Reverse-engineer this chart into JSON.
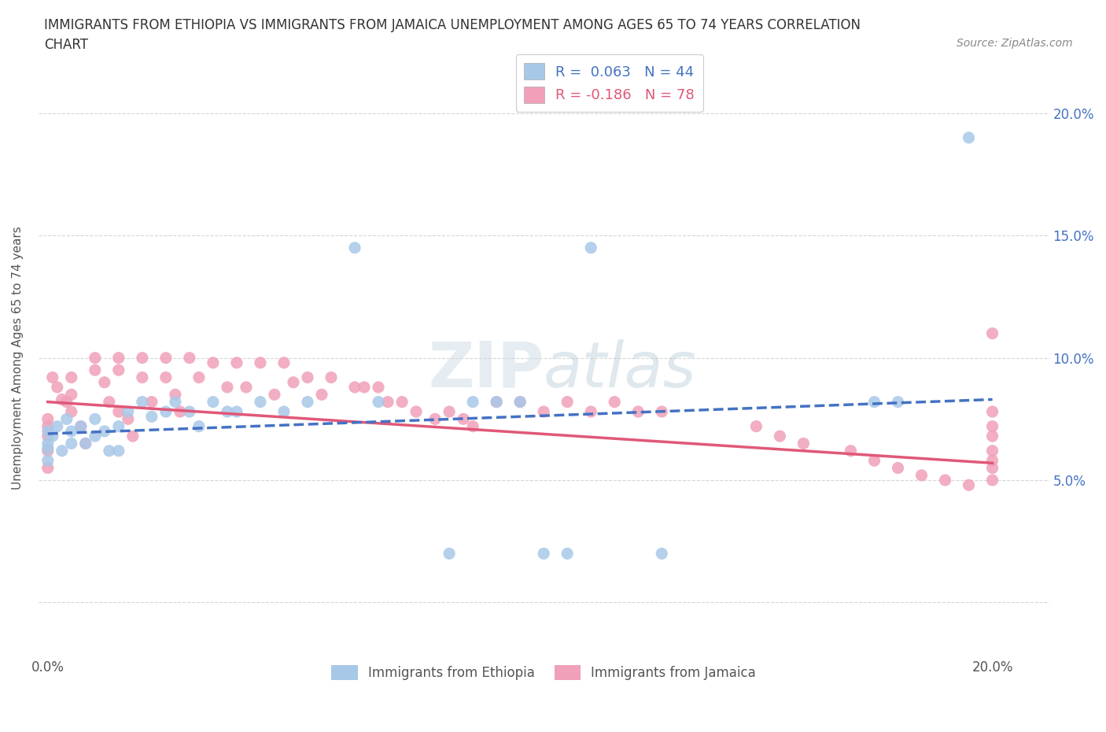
{
  "title_line1": "IMMIGRANTS FROM ETHIOPIA VS IMMIGRANTS FROM JAMAICA UNEMPLOYMENT AMONG AGES 65 TO 74 YEARS CORRELATION",
  "title_line2": "CHART",
  "source": "Source: ZipAtlas.com",
  "ylabel": "Unemployment Among Ages 65 to 74 years",
  "x_tick_labels": [
    "0.0%",
    "",
    "",
    "",
    "20.0%"
  ],
  "y_tick_labels_right": [
    "",
    "5.0%",
    "10.0%",
    "15.0%",
    "20.0%"
  ],
  "xlim": [
    -0.002,
    0.212
  ],
  "ylim": [
    -0.022,
    0.222
  ],
  "ethiopia_R": 0.063,
  "ethiopia_N": 44,
  "jamaica_R": -0.186,
  "jamaica_N": 78,
  "ethiopia_color": "#a8c8e8",
  "jamaica_color": "#f0a0b8",
  "ethiopia_line_color": "#4472c4",
  "jamaica_line_color": "#e05878",
  "ethiopia_trend_start_y": 0.069,
  "ethiopia_trend_end_y": 0.083,
  "jamaica_trend_start_y": 0.082,
  "jamaica_trend_end_y": 0.057,
  "ethiopia_x": [
    0.0,
    0.0,
    0.0,
    0.0,
    0.001,
    0.002,
    0.003,
    0.004,
    0.005,
    0.005,
    0.007,
    0.008,
    0.01,
    0.01,
    0.012,
    0.013,
    0.015,
    0.015,
    0.017,
    0.02,
    0.022,
    0.025,
    0.027,
    0.03,
    0.032,
    0.035,
    0.038,
    0.04,
    0.045,
    0.05,
    0.055,
    0.065,
    0.07,
    0.085,
    0.09,
    0.095,
    0.1,
    0.105,
    0.11,
    0.115,
    0.13,
    0.175,
    0.18,
    0.195
  ],
  "ethiopia_y": [
    0.07,
    0.065,
    0.063,
    0.058,
    0.068,
    0.072,
    0.062,
    0.075,
    0.07,
    0.065,
    0.072,
    0.065,
    0.075,
    0.068,
    0.07,
    0.062,
    0.072,
    0.062,
    0.078,
    0.082,
    0.076,
    0.078,
    0.082,
    0.078,
    0.072,
    0.082,
    0.078,
    0.078,
    0.082,
    0.078,
    0.082,
    0.145,
    0.082,
    0.02,
    0.082,
    0.082,
    0.082,
    0.02,
    0.02,
    0.145,
    0.02,
    0.082,
    0.082,
    0.19
  ],
  "jamaica_x": [
    0.0,
    0.0,
    0.0,
    0.0,
    0.0,
    0.001,
    0.002,
    0.003,
    0.004,
    0.005,
    0.005,
    0.005,
    0.007,
    0.008,
    0.01,
    0.01,
    0.012,
    0.013,
    0.015,
    0.015,
    0.015,
    0.017,
    0.018,
    0.02,
    0.02,
    0.022,
    0.025,
    0.025,
    0.027,
    0.028,
    0.03,
    0.032,
    0.035,
    0.038,
    0.04,
    0.042,
    0.045,
    0.048,
    0.05,
    0.052,
    0.055,
    0.058,
    0.06,
    0.065,
    0.067,
    0.07,
    0.072,
    0.075,
    0.078,
    0.082,
    0.085,
    0.088,
    0.09,
    0.095,
    0.1,
    0.105,
    0.11,
    0.115,
    0.12,
    0.125,
    0.13,
    0.15,
    0.155,
    0.16,
    0.17,
    0.175,
    0.18,
    0.185,
    0.19,
    0.195,
    0.2,
    0.2,
    0.2,
    0.2,
    0.2,
    0.2,
    0.2,
    0.2
  ],
  "jamaica_y": [
    0.075,
    0.072,
    0.068,
    0.062,
    0.055,
    0.092,
    0.088,
    0.083,
    0.082,
    0.092,
    0.085,
    0.078,
    0.072,
    0.065,
    0.1,
    0.095,
    0.09,
    0.082,
    0.1,
    0.095,
    0.078,
    0.075,
    0.068,
    0.1,
    0.092,
    0.082,
    0.1,
    0.092,
    0.085,
    0.078,
    0.1,
    0.092,
    0.098,
    0.088,
    0.098,
    0.088,
    0.098,
    0.085,
    0.098,
    0.09,
    0.092,
    0.085,
    0.092,
    0.088,
    0.088,
    0.088,
    0.082,
    0.082,
    0.078,
    0.075,
    0.078,
    0.075,
    0.072,
    0.082,
    0.082,
    0.078,
    0.082,
    0.078,
    0.082,
    0.078,
    0.078,
    0.072,
    0.068,
    0.065,
    0.062,
    0.058,
    0.055,
    0.052,
    0.05,
    0.048,
    0.078,
    0.072,
    0.068,
    0.062,
    0.058,
    0.055,
    0.05,
    0.11
  ]
}
